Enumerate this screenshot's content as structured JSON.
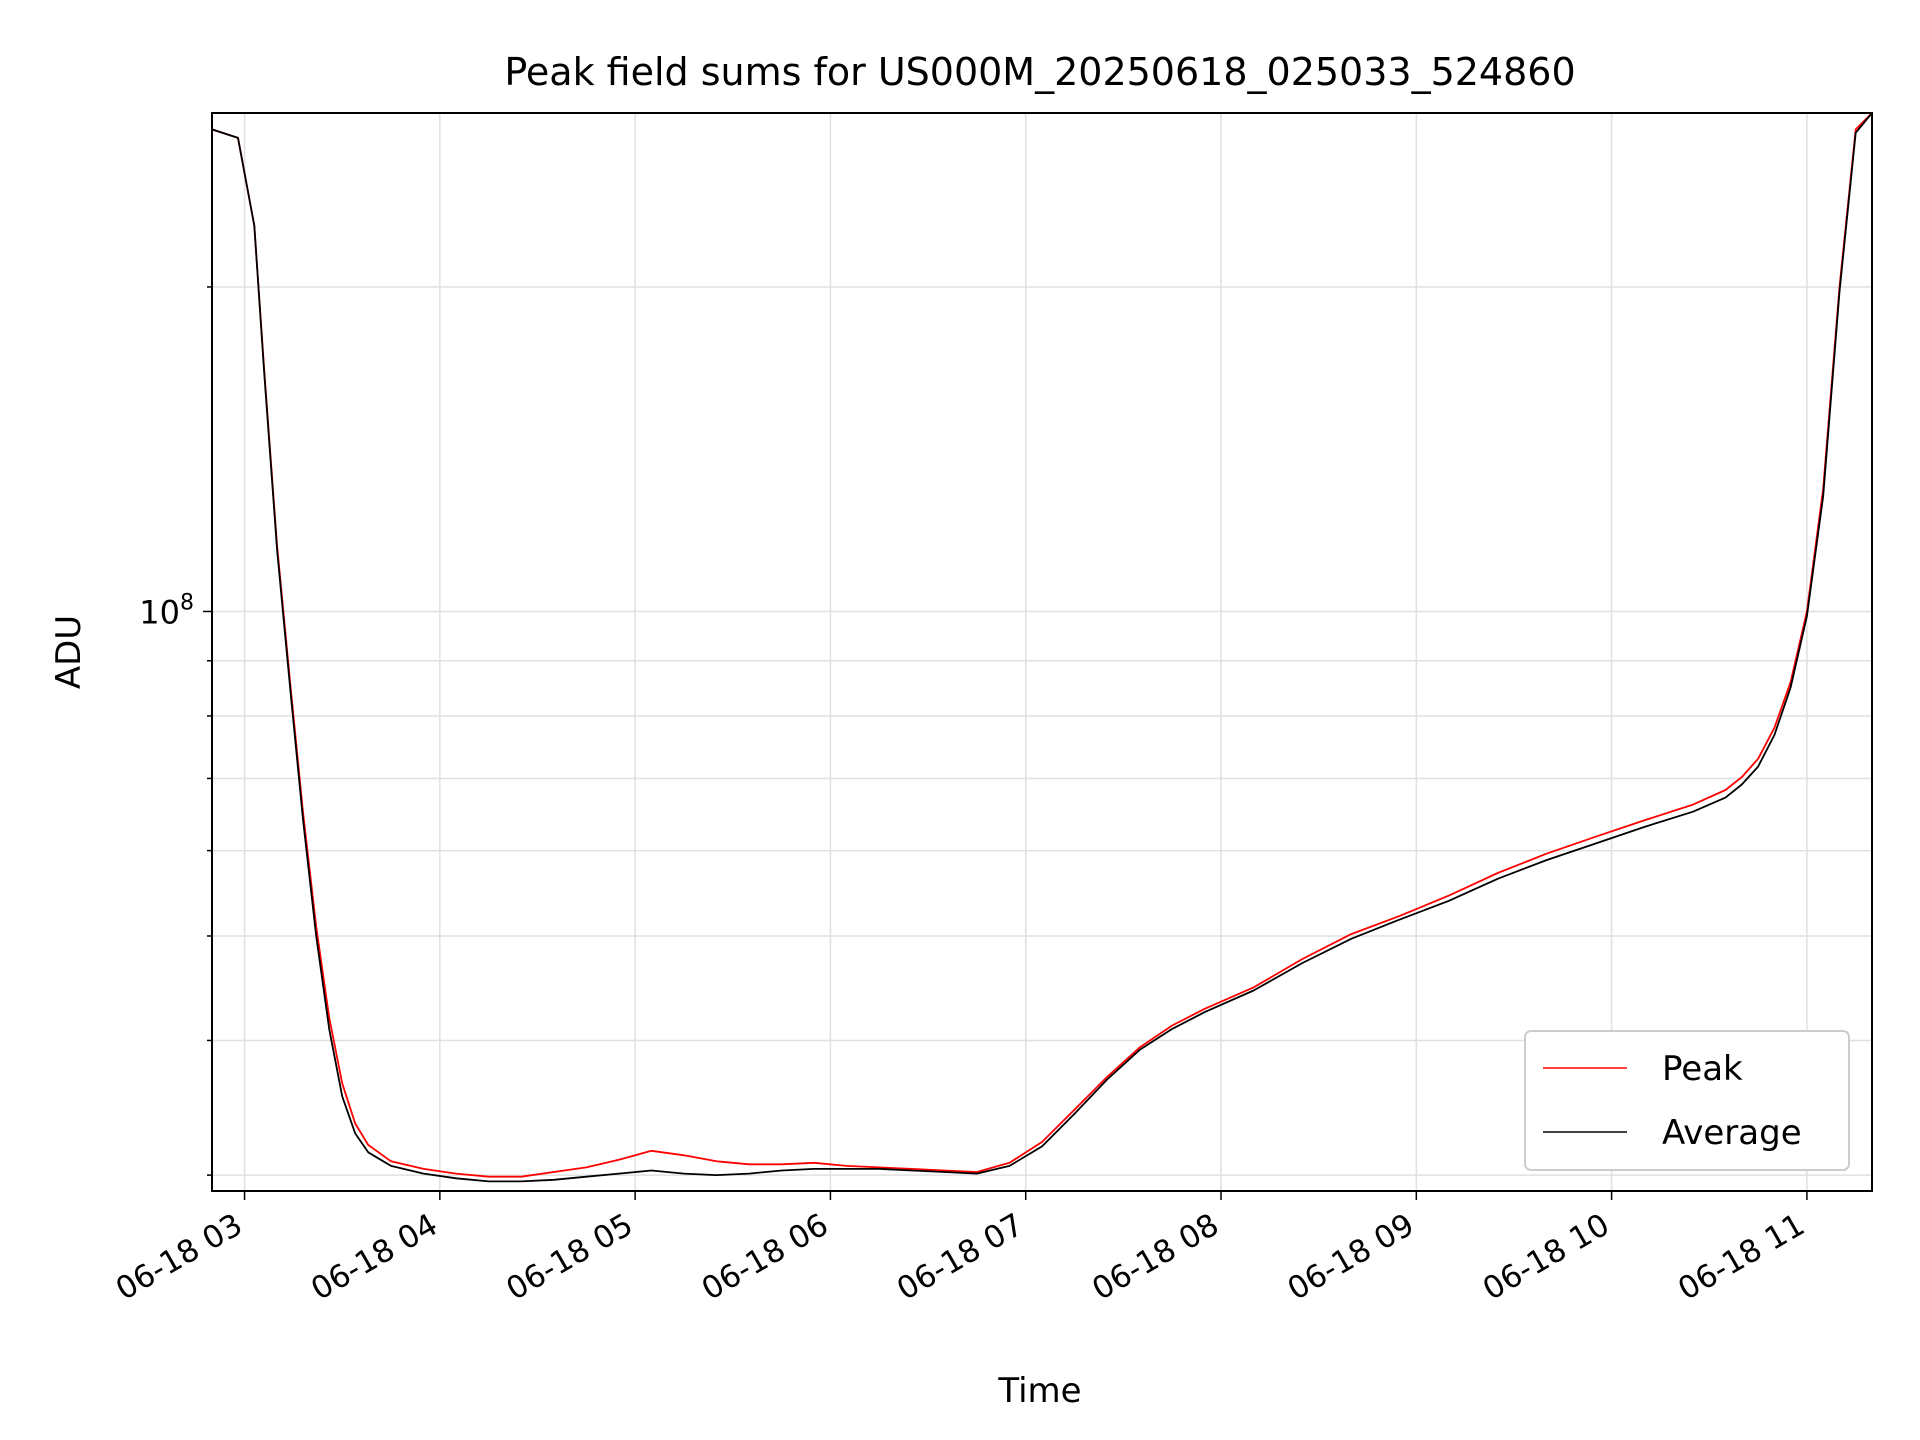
{
  "chart_data": {
    "type": "line",
    "title": "Peak field sums for US000M_20250618_025033_524860",
    "xlabel": "Time",
    "ylabel": "ADU",
    "x_axis_type": "datetime",
    "x_ticks": [
      "06-18 03",
      "06-18 04",
      "06-18 05",
      "06-18 06",
      "06-18 07",
      "06-18 08",
      "06-18 09",
      "06-18 10",
      "06-18 11"
    ],
    "y_scale": "log",
    "y_ticks": [
      {
        "value": 100000000,
        "base": "10",
        "exp": "8"
      }
    ],
    "xlim": [
      "2025-06-18 02:50",
      "2025-06-18 11:20"
    ],
    "ylim": [
      29000000,
      290000000
    ],
    "grid": true,
    "legend": {
      "position": "lower right",
      "entries": [
        "Peak",
        "Average"
      ]
    },
    "colors": {
      "Peak": "#ff0000",
      "Average": "#000000"
    },
    "series": [
      {
        "name": "Peak",
        "x": [
          "02:50",
          "02:58",
          "03:03",
          "03:06",
          "03:10",
          "03:14",
          "03:18",
          "03:22",
          "03:26",
          "03:30",
          "03:34",
          "03:38",
          "03:45",
          "03:55",
          "04:05",
          "04:15",
          "04:25",
          "04:35",
          "04:45",
          "04:55",
          "05:05",
          "05:15",
          "05:25",
          "05:35",
          "05:45",
          "05:55",
          "06:05",
          "06:15",
          "06:25",
          "06:35",
          "06:45",
          "06:55",
          "07:05",
          "07:15",
          "07:25",
          "07:35",
          "07:45",
          "07:55",
          "08:10",
          "08:25",
          "08:40",
          "08:55",
          "09:10",
          "09:25",
          "09:40",
          "09:55",
          "10:10",
          "10:25",
          "10:35",
          "10:40",
          "10:45",
          "10:50",
          "10:55",
          "11:00",
          "11:05",
          "11:10",
          "11:15",
          "11:20"
        ],
        "values": [
          280000000,
          275000000,
          228000000,
          168000000,
          115000000,
          86000000,
          65000000,
          51000000,
          42000000,
          36500000,
          33500000,
          32000000,
          30900000,
          30400000,
          30100000,
          29900000,
          29900000,
          30200000,
          30500000,
          31000000,
          31600000,
          31300000,
          30900000,
          30700000,
          30700000,
          30800000,
          30600000,
          30500000,
          30400000,
          30300000,
          30200000,
          30800000,
          32200000,
          34500000,
          37000000,
          39400000,
          41300000,
          42800000,
          44800000,
          47600000,
          50200000,
          52200000,
          54500000,
          57200000,
          59600000,
          61800000,
          64000000,
          66200000,
          68300000,
          70200000,
          73000000,
          78000000,
          86000000,
          100000000,
          130000000,
          200000000,
          280000000,
          290000000
        ]
      },
      {
        "name": "Average",
        "x": [
          "02:50",
          "02:58",
          "03:03",
          "03:06",
          "03:10",
          "03:14",
          "03:18",
          "03:22",
          "03:26",
          "03:30",
          "03:34",
          "03:38",
          "03:45",
          "03:55",
          "04:05",
          "04:15",
          "04:25",
          "04:35",
          "04:45",
          "04:55",
          "05:05",
          "05:15",
          "05:25",
          "05:35",
          "05:45",
          "05:55",
          "06:05",
          "06:15",
          "06:25",
          "06:35",
          "06:45",
          "06:55",
          "07:05",
          "07:15",
          "07:25",
          "07:35",
          "07:45",
          "07:55",
          "08:10",
          "08:25",
          "08:40",
          "08:55",
          "09:10",
          "09:25",
          "09:40",
          "09:55",
          "10:10",
          "10:25",
          "10:35",
          "10:40",
          "10:45",
          "10:50",
          "10:55",
          "11:00",
          "11:05",
          "11:10",
          "11:15",
          "11:20"
        ],
        "values": [
          280000000,
          275000000,
          228000000,
          167000000,
          114000000,
          85000000,
          64000000,
          50000000,
          41000000,
          35500000,
          32800000,
          31500000,
          30600000,
          30100000,
          29800000,
          29600000,
          29600000,
          29700000,
          29900000,
          30100000,
          30300000,
          30100000,
          30000000,
          30100000,
          30300000,
          30400000,
          30400000,
          30400000,
          30300000,
          30200000,
          30100000,
          30600000,
          31900000,
          34200000,
          36800000,
          39200000,
          41000000,
          42500000,
          44500000,
          47200000,
          49700000,
          51800000,
          53900000,
          56500000,
          58800000,
          60900000,
          63100000,
          65200000,
          67200000,
          69100000,
          71800000,
          76800000,
          85000000,
          99000000,
          128000000,
          198000000,
          278000000,
          290000000
        ]
      }
    ]
  }
}
